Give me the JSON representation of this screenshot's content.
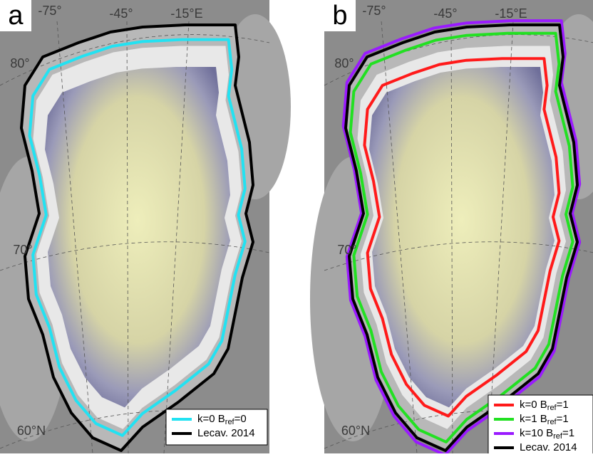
{
  "panels": [
    {
      "label": "a",
      "graticule": [
        "-75°",
        "-45°",
        "-15°E",
        "80°",
        "70°",
        "60°N"
      ],
      "legend": [
        {
          "text": "k=0 B",
          "sub": "ref",
          "tail": "=0",
          "color": "#22e2f2"
        },
        {
          "text": "Lecav. 2014",
          "color": "#000000"
        }
      ]
    },
    {
      "label": "b",
      "graticule": [
        "-75°",
        "-45°",
        "-15°E",
        "80°",
        "70°",
        "60°N"
      ],
      "legend": [
        {
          "text": "k=0 B",
          "sub": "ref",
          "tail": "=1",
          "color": "#ff1a1a"
        },
        {
          "text": "k=1 B",
          "sub": "ref",
          "tail": "=1",
          "color": "#22e022"
        },
        {
          "text": "k=10 B",
          "sub": "ref",
          "tail": "=1",
          "color": "#9a1aff"
        },
        {
          "text": "Lecav. 2014",
          "color": "#000000"
        }
      ]
    }
  ]
}
